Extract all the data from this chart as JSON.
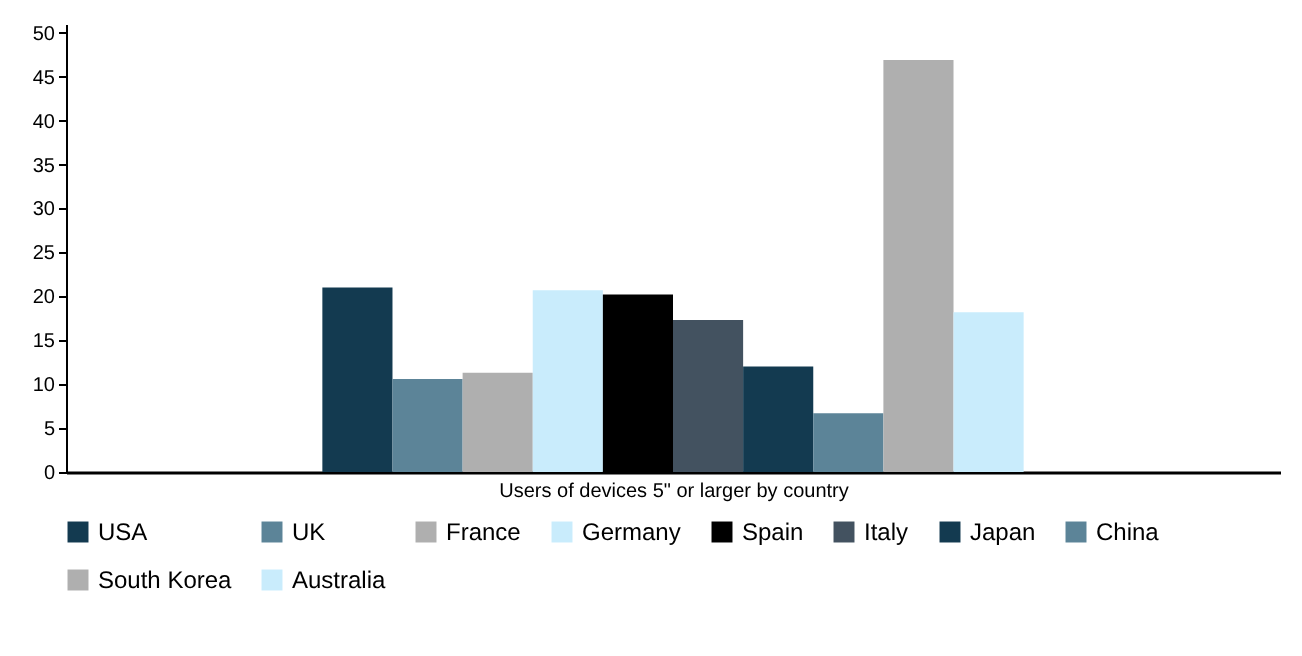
{
  "chart_data": {
    "type": "bar",
    "xlabel": "Users of devices 5\" or larger by country",
    "categories": [
      null
    ],
    "series": [
      {
        "name": "USA",
        "color": "#133a50",
        "values": [
          21
        ]
      },
      {
        "name": "UK",
        "color": "#5c8498",
        "values": [
          10.6
        ]
      },
      {
        "name": "France",
        "color": "#afafaf",
        "values": [
          11.3
        ]
      },
      {
        "name": "Germany",
        "color": "#c9ecfc",
        "values": [
          20.7
        ]
      },
      {
        "name": "Spain",
        "color": "#000000",
        "values": [
          20.2
        ]
      },
      {
        "name": "Italy",
        "color": "#435260",
        "values": [
          17.3
        ]
      },
      {
        "name": "Japan",
        "color": "#133a50",
        "values": [
          12
        ]
      },
      {
        "name": "China",
        "color": "#5c8498",
        "values": [
          6.7
        ]
      },
      {
        "name": "South Korea",
        "color": "#afafaf",
        "values": [
          46.9
        ]
      },
      {
        "name": "Australia",
        "color": "#c9ecfc",
        "values": [
          18.2
        ]
      }
    ],
    "ylim": [
      0,
      51
    ],
    "yticks": [
      0,
      5,
      10,
      15,
      20,
      25,
      30,
      35,
      40,
      45,
      50
    ],
    "grid": false,
    "legend": "bottom",
    "tick_labels": "y"
  }
}
